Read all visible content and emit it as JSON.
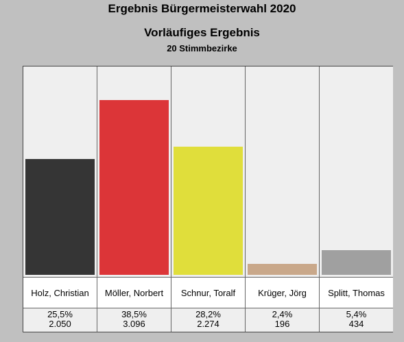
{
  "header": {
    "title": "Ergebnis Bürgermeisterwahl 2020",
    "subtitle": "Vorläufiges Ergebnis",
    "subsubtitle": "20 Stimmbezirke"
  },
  "chart_data": {
    "type": "bar",
    "title": "Ergebnis Bürgermeisterwahl 2020",
    "subtitle": "Vorläufiges Ergebnis",
    "categories": [
      "Holz, Christian",
      "Möller, Norbert",
      "Schnur, Toralf",
      "Krüger, Jörg",
      "Splitt, Thomas"
    ],
    "values": [
      25.5,
      38.5,
      28.2,
      2.4,
      5.4
    ],
    "percent_labels": [
      "25,5%",
      "38,5%",
      "28,2%",
      "2,4%",
      "5,4%"
    ],
    "vote_labels": [
      "2.050",
      "3.096",
      "2.274",
      "196",
      "434"
    ],
    "colors": [
      "#353535",
      "#dc3538",
      "#e0de3b",
      "#c9a88a",
      "#a0a0a0"
    ],
    "ylim": [
      0,
      40
    ],
    "grid": false
  }
}
